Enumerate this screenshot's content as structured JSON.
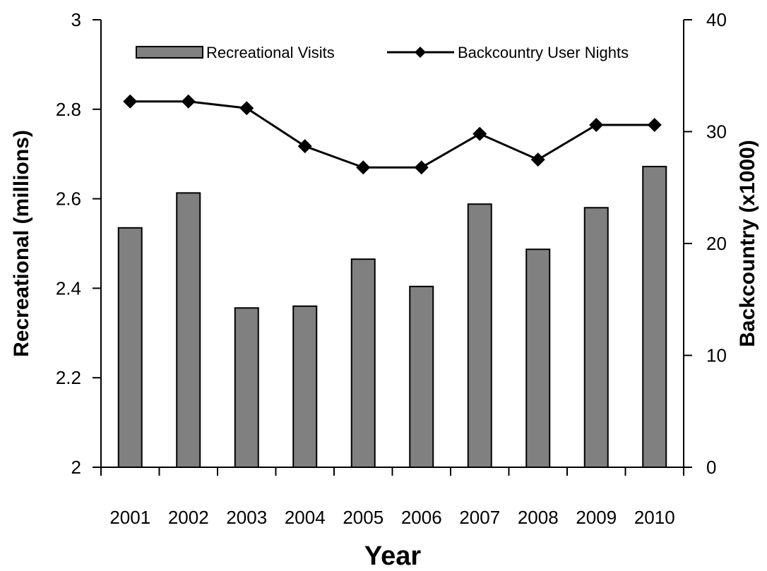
{
  "chart_data": {
    "type": "bar",
    "categories": [
      "2001",
      "2002",
      "2003",
      "2004",
      "2005",
      "2006",
      "2007",
      "2008",
      "2009",
      "2010"
    ],
    "series": [
      {
        "name": "Recreational Visits",
        "type": "bar",
        "axis": "left",
        "values": [
          2.535,
          2.613,
          2.356,
          2.36,
          2.465,
          2.404,
          2.588,
          2.487,
          2.58,
          2.672
        ],
        "color": "#808080"
      },
      {
        "name": "Backcountry User Nights",
        "type": "line",
        "axis": "right",
        "values": [
          32.7,
          32.7,
          32.1,
          28.7,
          26.8,
          26.8,
          29.8,
          27.5,
          30.6,
          30.6
        ],
        "color": "#000000"
      }
    ],
    "xlabel": "Year",
    "ylabel": "Recreational (millions)",
    "y2label": "Backcountry (x1000)",
    "ylim": [
      2,
      3
    ],
    "y2lim": [
      0,
      40
    ],
    "yticks": [
      "2",
      "2.2",
      "2.4",
      "2.6",
      "2.8",
      "3"
    ],
    "y2ticks": [
      "0",
      "10",
      "20",
      "30",
      "40"
    ],
    "legend_position": "top",
    "grid": false
  }
}
